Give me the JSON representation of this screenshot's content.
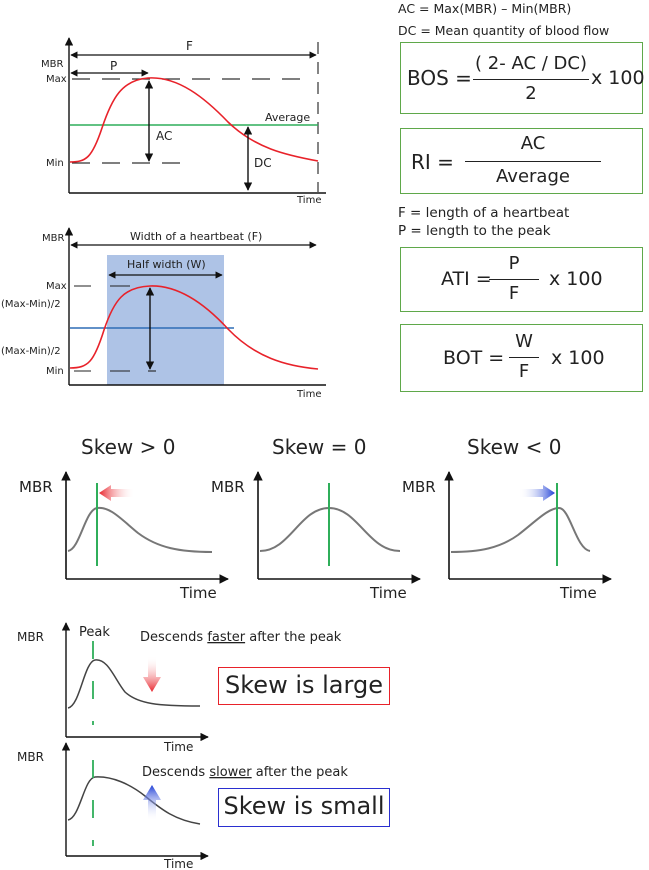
{
  "chart1": {
    "mbr": "MBR",
    "max": "Max",
    "min": "Min",
    "f": "F",
    "p": "P",
    "ac": "AC",
    "dc": "DC",
    "average": "Average",
    "time": "Time"
  },
  "chart2": {
    "mbr": "MBR",
    "width": "Width of a heartbeat (F)",
    "half_width": "Half width (W)",
    "max": "Max",
    "half_upper": "(Max-Min)/2",
    "half_lower": "(Max-Min)/2",
    "min": "Min",
    "time": "Time"
  },
  "defs": {
    "ac": "AC = Max(MBR) – Min(MBR)",
    "dc": "DC = Mean quantity of blood flow",
    "f": "F = length of a heartbeat",
    "p": "P = length to the peak"
  },
  "formulas": {
    "bos": {
      "lhs": "BOS =",
      "num": "( 2- AC / DC)",
      "den": "2",
      "tail": "x 100"
    },
    "ri": {
      "lhs": "RI =",
      "num": "AC",
      "den": "Average"
    },
    "ati": {
      "lhs": "ATI =",
      "num": "P",
      "den": "F",
      "tail": "x 100"
    },
    "bot": {
      "lhs": "BOT =",
      "num": "W",
      "den": "F",
      "tail": "x 100"
    }
  },
  "skew": {
    "titles": [
      "Skew > 0",
      "Skew = 0",
      "Skew < 0"
    ],
    "mbr": "MBR",
    "time": "Time"
  },
  "bottom": {
    "mbr": "MBR",
    "peak": "Peak",
    "time": "Time",
    "desc1_pre": "Descends ",
    "desc1_u": "faster",
    "desc1_post": " after the peak",
    "desc2_pre": "Descends ",
    "desc2_u": "slower",
    "desc2_post": " after the peak",
    "large": "Skew is large",
    "small": "Skew is small"
  },
  "colors": {
    "red_curve": "#e8222a",
    "green": "#2fae5a",
    "blue_line": "#2f6db5",
    "shade": "#aec3e6",
    "gray_curve": "#777777",
    "box_border": "#5fa84a"
  }
}
